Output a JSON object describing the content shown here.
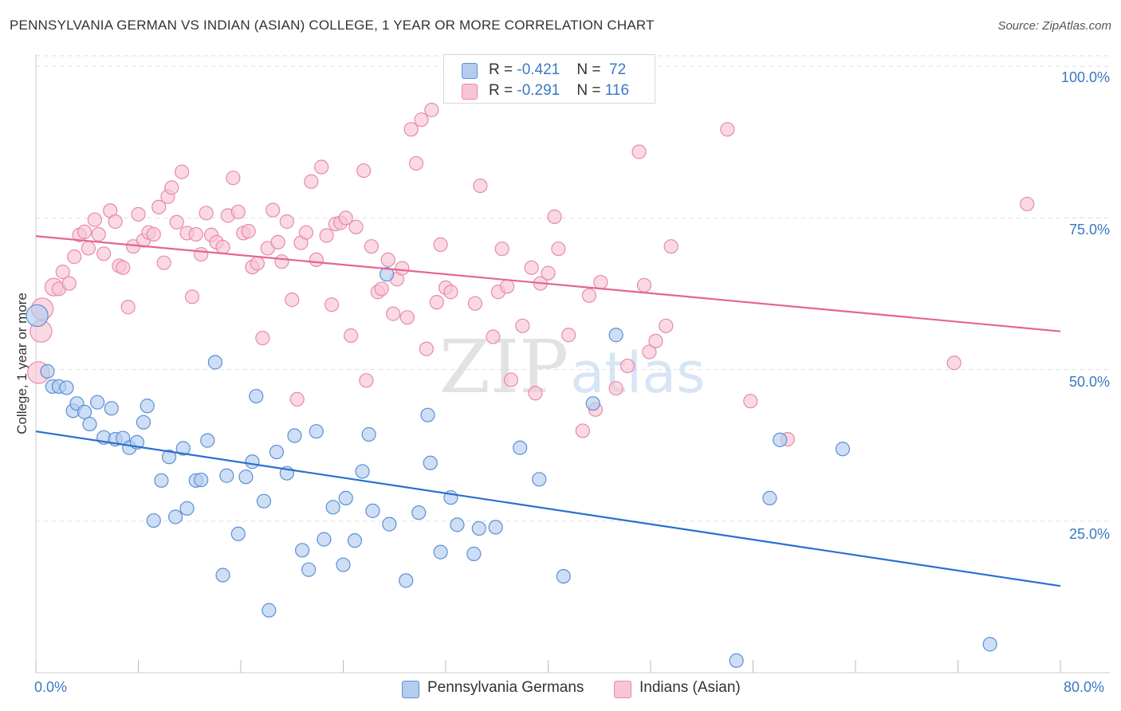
{
  "title": "PENNSYLVANIA GERMAN VS INDIAN (ASIAN) COLLEGE, 1 YEAR OR MORE CORRELATION CHART",
  "source": "Source: ZipAtlas.com",
  "watermark": {
    "zip": "ZIP",
    "atlas": "atlas"
  },
  "colors": {
    "blue_fill": "#b3cdf0",
    "blue_stroke": "#5b8fd6",
    "blue_line": "#2a6fd0",
    "pink_fill": "#f7c5d4",
    "pink_stroke": "#e88aa8",
    "pink_line": "#e4668f",
    "tick_text": "#3b78c4",
    "grid": "#dddddd"
  },
  "legend_top": [
    {
      "r_label": "R = ",
      "r_value": "-0.421",
      "n_label": "N = ",
      "n_value": "72",
      "color": "blue"
    },
    {
      "r_label": "R = ",
      "r_value": "-0.291",
      "n_label": "N = ",
      "n_value": "116",
      "color": "pink"
    }
  ],
  "legend_bottom": [
    {
      "label": "Pennsylvania Germans",
      "color": "blue"
    },
    {
      "label": "Indians (Asian)",
      "color": "pink"
    }
  ],
  "chart_data": {
    "type": "scatter",
    "title": "PENNSYLVANIA GERMAN VS INDIAN (ASIAN) COLLEGE, 1 YEAR OR MORE CORRELATION CHART",
    "xlabel": "",
    "ylabel": "College, 1 year or more",
    "xlim": [
      0,
      80
    ],
    "ylim": [
      0,
      102
    ],
    "x_tick_labels": [
      "0.0%",
      "80.0%"
    ],
    "y_ticks": [
      25,
      50,
      75,
      100
    ],
    "y_tick_labels": [
      "25.0%",
      "50.0%",
      "75.0%",
      "100.0%"
    ],
    "grid": true,
    "legend_position": "top-center",
    "series": [
      {
        "name": "Pennsylvania Germans",
        "color": "blue",
        "r": -0.421,
        "n": 72,
        "trend": {
          "x": [
            0,
            80
          ],
          "y": [
            39.8,
            14.3
          ]
        },
        "points": [
          [
            0.1,
            58.9,
            1.6
          ],
          [
            0.9,
            49.7,
            1
          ],
          [
            1.3,
            47.2,
            1
          ],
          [
            1.8,
            47.2,
            1
          ],
          [
            2.4,
            47.0,
            1
          ],
          [
            2.9,
            43.2,
            1
          ],
          [
            3.2,
            44.4,
            1
          ],
          [
            3.8,
            43.0,
            1
          ],
          [
            4.2,
            41.0,
            1
          ],
          [
            4.8,
            44.6,
            1
          ],
          [
            5.3,
            38.8,
            1
          ],
          [
            5.9,
            43.6,
            1
          ],
          [
            6.2,
            38.5,
            1
          ],
          [
            6.8,
            38.7,
            1
          ],
          [
            7.3,
            37.1,
            1
          ],
          [
            7.9,
            38.0,
            1
          ],
          [
            8.4,
            41.3,
            1
          ],
          [
            8.7,
            44.0,
            1
          ],
          [
            9.2,
            25.1,
            1
          ],
          [
            9.8,
            31.7,
            1
          ],
          [
            10.4,
            35.6,
            1
          ],
          [
            10.9,
            25.7,
            1
          ],
          [
            11.5,
            37.0,
            1
          ],
          [
            11.8,
            27.1,
            1
          ],
          [
            12.5,
            31.7,
            1
          ],
          [
            12.9,
            31.8,
            1
          ],
          [
            13.4,
            38.3,
            1
          ],
          [
            14.0,
            51.2,
            1
          ],
          [
            14.6,
            16.1,
            1
          ],
          [
            14.9,
            32.5,
            1
          ],
          [
            15.8,
            22.9,
            1
          ],
          [
            16.4,
            32.3,
            1
          ],
          [
            16.9,
            34.8,
            1
          ],
          [
            17.2,
            45.6,
            1
          ],
          [
            17.8,
            28.3,
            1
          ],
          [
            18.2,
            10.3,
            1
          ],
          [
            18.8,
            36.4,
            1
          ],
          [
            19.6,
            32.9,
            1
          ],
          [
            20.2,
            39.1,
            1
          ],
          [
            20.8,
            20.2,
            1
          ],
          [
            21.3,
            17.0,
            1
          ],
          [
            21.9,
            39.8,
            1
          ],
          [
            22.5,
            22.0,
            1
          ],
          [
            23.2,
            27.3,
            1
          ],
          [
            24.0,
            17.8,
            1
          ],
          [
            24.2,
            28.8,
            1
          ],
          [
            24.9,
            21.8,
            1
          ],
          [
            25.5,
            33.2,
            1
          ],
          [
            26.0,
            39.3,
            1
          ],
          [
            26.3,
            26.7,
            1
          ],
          [
            27.4,
            65.7,
            1
          ],
          [
            27.6,
            24.5,
            1
          ],
          [
            28.9,
            15.2,
            1
          ],
          [
            29.9,
            26.4,
            1
          ],
          [
            30.6,
            42.5,
            1
          ],
          [
            30.8,
            34.6,
            1
          ],
          [
            31.6,
            19.9,
            1
          ],
          [
            32.4,
            28.9,
            1
          ],
          [
            32.9,
            24.4,
            1
          ],
          [
            34.2,
            19.6,
            1
          ],
          [
            34.6,
            23.8,
            1
          ],
          [
            35.9,
            24.0,
            1
          ],
          [
            37.8,
            37.1,
            1
          ],
          [
            39.3,
            31.9,
            1
          ],
          [
            41.2,
            15.9,
            1
          ],
          [
            43.5,
            44.4,
            1
          ],
          [
            45.3,
            55.7,
            1
          ],
          [
            54.7,
            2.0,
            1
          ],
          [
            57.3,
            28.8,
            1
          ],
          [
            58.1,
            38.4,
            1
          ],
          [
            63.0,
            36.9,
            1
          ],
          [
            74.5,
            4.7,
            1
          ]
        ]
      },
      {
        "name": "Indians (Asian)",
        "color": "pink",
        "r": -0.291,
        "n": 116,
        "trend": {
          "x": [
            0,
            80
          ],
          "y": [
            72.0,
            56.3
          ]
        },
        "points": [
          [
            0.4,
            56.3,
            1.6
          ],
          [
            0.5,
            60.0,
            1.6
          ],
          [
            0.2,
            49.5,
            1.6
          ],
          [
            1.4,
            63.6,
            1.3
          ],
          [
            1.8,
            63.3,
            1
          ],
          [
            2.1,
            66.1,
            1
          ],
          [
            2.6,
            64.2,
            1
          ],
          [
            3.0,
            68.6,
            1
          ],
          [
            3.4,
            72.2,
            1
          ],
          [
            3.8,
            72.7,
            1
          ],
          [
            4.1,
            70.0,
            1
          ],
          [
            4.6,
            74.7,
            1
          ],
          [
            4.9,
            72.3,
            1
          ],
          [
            5.3,
            69.1,
            1
          ],
          [
            5.8,
            76.2,
            1
          ],
          [
            6.2,
            74.4,
            1
          ],
          [
            6.5,
            67.1,
            1
          ],
          [
            6.8,
            66.8,
            1
          ],
          [
            7.2,
            60.3,
            1
          ],
          [
            7.6,
            70.3,
            1
          ],
          [
            8.0,
            75.6,
            1
          ],
          [
            8.4,
            71.3,
            1
          ],
          [
            8.8,
            72.6,
            1
          ],
          [
            9.2,
            72.3,
            1
          ],
          [
            9.6,
            76.8,
            1
          ],
          [
            10.0,
            67.6,
            1
          ],
          [
            10.3,
            78.5,
            1
          ],
          [
            10.6,
            80.0,
            1
          ],
          [
            11.0,
            74.3,
            1
          ],
          [
            11.4,
            82.6,
            1
          ],
          [
            11.8,
            72.5,
            1
          ],
          [
            12.2,
            62.0,
            1
          ],
          [
            12.5,
            72.3,
            1
          ],
          [
            12.9,
            69.0,
            1
          ],
          [
            13.3,
            75.8,
            1
          ],
          [
            13.7,
            72.2,
            1
          ],
          [
            14.1,
            71.0,
            1
          ],
          [
            14.6,
            70.2,
            1
          ],
          [
            15.0,
            75.4,
            1
          ],
          [
            15.4,
            81.6,
            1
          ],
          [
            15.8,
            76.0,
            1
          ],
          [
            16.2,
            72.5,
            1
          ],
          [
            16.6,
            72.8,
            1
          ],
          [
            16.9,
            66.9,
            1
          ],
          [
            17.3,
            67.5,
            1
          ],
          [
            17.7,
            55.2,
            1
          ],
          [
            18.1,
            70.0,
            1
          ],
          [
            18.5,
            76.3,
            1
          ],
          [
            18.9,
            71.0,
            1
          ],
          [
            19.2,
            67.8,
            1
          ],
          [
            19.6,
            74.4,
            1
          ],
          [
            20.0,
            61.5,
            1
          ],
          [
            20.4,
            45.1,
            1
          ],
          [
            20.7,
            70.9,
            1
          ],
          [
            21.1,
            72.6,
            1
          ],
          [
            21.5,
            81.0,
            1
          ],
          [
            21.9,
            68.1,
            1
          ],
          [
            22.3,
            83.4,
            1
          ],
          [
            22.7,
            72.1,
            1
          ],
          [
            23.1,
            60.7,
            1
          ],
          [
            23.4,
            74.0,
            1
          ],
          [
            23.8,
            74.2,
            1
          ],
          [
            24.2,
            75.0,
            1
          ],
          [
            24.6,
            55.6,
            1
          ],
          [
            25.0,
            73.5,
            1
          ],
          [
            25.6,
            82.8,
            1
          ],
          [
            25.8,
            48.2,
            1
          ],
          [
            26.2,
            70.3,
            1
          ],
          [
            26.7,
            62.8,
            1
          ],
          [
            27.0,
            63.3,
            1
          ],
          [
            27.5,
            68.1,
            1
          ],
          [
            27.9,
            59.2,
            1
          ],
          [
            28.2,
            64.9,
            1
          ],
          [
            28.6,
            66.7,
            1
          ],
          [
            29.0,
            58.6,
            1
          ],
          [
            29.3,
            89.6,
            1
          ],
          [
            29.7,
            84.0,
            1
          ],
          [
            30.1,
            91.2,
            1
          ],
          [
            30.5,
            53.4,
            1
          ],
          [
            30.9,
            92.8,
            1
          ],
          [
            31.3,
            61.1,
            1
          ],
          [
            31.6,
            70.6,
            1
          ],
          [
            32.0,
            63.5,
            1
          ],
          [
            32.4,
            62.8,
            1
          ],
          [
            34.3,
            60.9,
            1
          ],
          [
            34.7,
            80.3,
            1
          ],
          [
            35.7,
            55.4,
            1
          ],
          [
            36.1,
            62.8,
            1
          ],
          [
            36.4,
            69.9,
            1
          ],
          [
            36.8,
            63.7,
            1
          ],
          [
            37.1,
            48.3,
            1
          ],
          [
            38.0,
            57.2,
            1
          ],
          [
            38.7,
            66.8,
            1
          ],
          [
            39.0,
            46.1,
            1
          ],
          [
            39.4,
            64.2,
            1
          ],
          [
            40.0,
            65.9,
            1
          ],
          [
            40.5,
            75.2,
            1
          ],
          [
            40.8,
            69.9,
            1
          ],
          [
            41.6,
            55.7,
            1
          ],
          [
            42.7,
            39.9,
            1
          ],
          [
            43.2,
            62.2,
            1
          ],
          [
            43.7,
            43.4,
            1
          ],
          [
            44.1,
            64.4,
            1
          ],
          [
            45.3,
            46.9,
            1
          ],
          [
            46.2,
            50.6,
            1
          ],
          [
            47.1,
            85.9,
            1
          ],
          [
            47.5,
            63.9,
            1
          ],
          [
            47.9,
            52.9,
            1
          ],
          [
            48.4,
            54.7,
            1
          ],
          [
            49.2,
            57.2,
            1
          ],
          [
            49.6,
            70.3,
            1
          ],
          [
            54.0,
            89.6,
            1
          ],
          [
            55.8,
            44.8,
            1
          ],
          [
            58.7,
            38.5,
            1
          ],
          [
            71.7,
            51.1,
            1
          ],
          [
            77.4,
            77.3,
            1
          ]
        ]
      }
    ]
  }
}
